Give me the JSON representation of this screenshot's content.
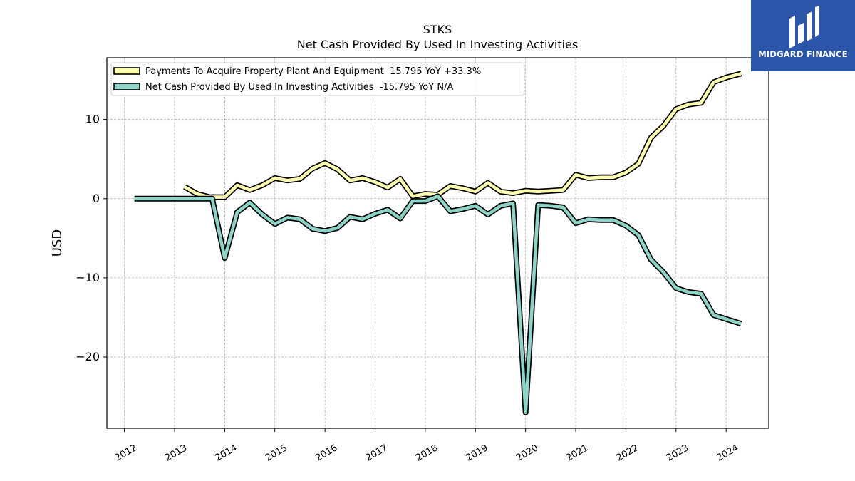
{
  "brand": {
    "name": "MIDGARD FINANCE",
    "background": "#2a55a8"
  },
  "chart_data": {
    "type": "line",
    "title": "STKS",
    "subtitle": "Net Cash Provided By Used In Investing Activities",
    "xlabel": "",
    "ylabel": "USD",
    "xlim": [
      2011.65,
      2024.85
    ],
    "ylim": [
      -29,
      17.8
    ],
    "x_ticks": [
      2012,
      2013,
      2014,
      2015,
      2016,
      2017,
      2018,
      2019,
      2020,
      2021,
      2022,
      2023,
      2024
    ],
    "x_tick_labels": [
      "2012",
      "2013",
      "2014",
      "2015",
      "2016",
      "2017",
      "2018",
      "2019",
      "2020",
      "2021",
      "2022",
      "2023",
      "2024"
    ],
    "y_ticks": [
      10,
      0,
      -10,
      -20
    ],
    "y_tick_labels": [
      "10",
      "0",
      "−10",
      "−20"
    ],
    "grid": true,
    "legend_position": "top-left",
    "series": [
      {
        "name": "Payments To Acquire Property Plant And Equipment  15.795 YoY +33.3%",
        "color": "#ffffb3",
        "points": [
          [
            2013.2,
            1.5
          ],
          [
            2013.45,
            0.6
          ],
          [
            2013.7,
            0.2
          ],
          [
            2014.0,
            0.2
          ],
          [
            2014.25,
            1.7
          ],
          [
            2014.5,
            1.1
          ],
          [
            2014.75,
            1.7
          ],
          [
            2015.0,
            2.6
          ],
          [
            2015.25,
            2.3
          ],
          [
            2015.5,
            2.5
          ],
          [
            2015.75,
            3.8
          ],
          [
            2016.0,
            4.5
          ],
          [
            2016.25,
            3.7
          ],
          [
            2016.5,
            2.3
          ],
          [
            2016.75,
            2.6
          ],
          [
            2017.0,
            2.1
          ],
          [
            2017.25,
            1.4
          ],
          [
            2017.5,
            2.5
          ],
          [
            2017.75,
            0.3
          ],
          [
            2018.0,
            0.6
          ],
          [
            2018.25,
            0.5
          ],
          [
            2018.5,
            1.6
          ],
          [
            2018.75,
            1.3
          ],
          [
            2019.0,
            0.9
          ],
          [
            2019.25,
            2.0
          ],
          [
            2019.5,
            0.9
          ],
          [
            2019.75,
            0.7
          ],
          [
            2020.0,
            1.0
          ],
          [
            2020.25,
            0.9
          ],
          [
            2020.5,
            1.0
          ],
          [
            2020.75,
            1.1
          ],
          [
            2021.0,
            3.0
          ],
          [
            2021.25,
            2.6
          ],
          [
            2021.5,
            2.7
          ],
          [
            2021.75,
            2.7
          ],
          [
            2022.0,
            3.3
          ],
          [
            2022.25,
            4.4
          ],
          [
            2022.5,
            7.7
          ],
          [
            2022.75,
            9.2
          ],
          [
            2023.0,
            11.3
          ],
          [
            2023.25,
            11.9
          ],
          [
            2023.5,
            12.1
          ],
          [
            2023.75,
            14.7
          ],
          [
            2024.0,
            15.3
          ],
          [
            2024.3,
            15.8
          ]
        ]
      },
      {
        "name": "Net Cash Provided By Used In Investing Activities  -15.795 YoY N/A",
        "color": "#8dd3c7",
        "points": [
          [
            2012.2,
            0.0
          ],
          [
            2012.5,
            0.0
          ],
          [
            2012.75,
            0.0
          ],
          [
            2013.0,
            0.0
          ],
          [
            2013.25,
            0.0
          ],
          [
            2013.5,
            0.0
          ],
          [
            2013.75,
            0.0
          ],
          [
            2014.0,
            -7.5
          ],
          [
            2014.25,
            -1.7
          ],
          [
            2014.5,
            -0.5
          ],
          [
            2014.75,
            -2.0
          ],
          [
            2015.0,
            -3.2
          ],
          [
            2015.25,
            -2.4
          ],
          [
            2015.5,
            -2.6
          ],
          [
            2015.75,
            -3.8
          ],
          [
            2016.0,
            -4.1
          ],
          [
            2016.25,
            -3.7
          ],
          [
            2016.5,
            -2.3
          ],
          [
            2016.75,
            -2.6
          ],
          [
            2017.0,
            -1.9
          ],
          [
            2017.25,
            -1.4
          ],
          [
            2017.5,
            -2.5
          ],
          [
            2017.75,
            -0.3
          ],
          [
            2018.0,
            -0.3
          ],
          [
            2018.25,
            0.3
          ],
          [
            2018.5,
            -1.6
          ],
          [
            2018.75,
            -1.3
          ],
          [
            2019.0,
            -0.9
          ],
          [
            2019.25,
            -2.0
          ],
          [
            2019.5,
            -0.9
          ],
          [
            2019.75,
            -0.6
          ],
          [
            2020.0,
            -27.0
          ],
          [
            2020.25,
            -0.8
          ],
          [
            2020.5,
            -0.9
          ],
          [
            2020.75,
            -1.1
          ],
          [
            2021.0,
            -3.1
          ],
          [
            2021.25,
            -2.6
          ],
          [
            2021.5,
            -2.7
          ],
          [
            2021.75,
            -2.7
          ],
          [
            2022.0,
            -3.4
          ],
          [
            2022.25,
            -4.6
          ],
          [
            2022.5,
            -7.7
          ],
          [
            2022.75,
            -9.3
          ],
          [
            2023.0,
            -11.3
          ],
          [
            2023.25,
            -11.8
          ],
          [
            2023.5,
            -12.0
          ],
          [
            2023.75,
            -14.7
          ],
          [
            2024.0,
            -15.2
          ],
          [
            2024.3,
            -15.8
          ]
        ]
      }
    ]
  }
}
